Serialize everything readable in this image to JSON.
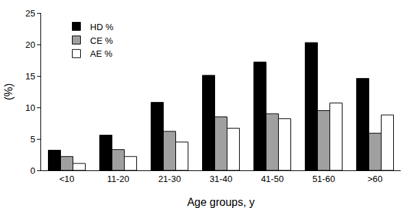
{
  "chart_data": {
    "type": "bar",
    "x_label": "Age groups, y",
    "y_label": "(%)",
    "categories": [
      "<10",
      "11-20",
      "21-30",
      "31-40",
      "41-50",
      "51-60",
      ">60"
    ],
    "series": [
      {
        "name": "HD %",
        "color": "#000000",
        "values": [
          3.2,
          5.6,
          10.8,
          15.1,
          17.2,
          20.3,
          14.6
        ]
      },
      {
        "name": "CE %",
        "color": "#a0a0a0",
        "values": [
          2.2,
          3.3,
          6.2,
          8.5,
          9.0,
          9.5,
          5.9
        ]
      },
      {
        "name": "AE %",
        "color": "#ffffff",
        "values": [
          1.1,
          2.2,
          4.5,
          6.7,
          8.2,
          10.7,
          8.8
        ]
      }
    ],
    "ylim": [
      0,
      25
    ],
    "yticks": [
      0,
      5,
      10,
      15,
      20,
      25
    ],
    "grid": false,
    "legend": "upper left"
  }
}
